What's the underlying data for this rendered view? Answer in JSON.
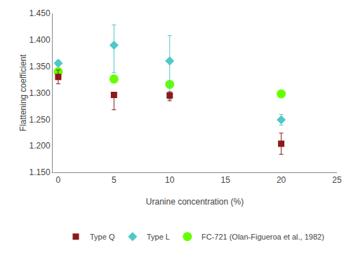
{
  "chart_data": {
    "type": "scatter",
    "title": "",
    "xlabel": "Uranine concentration (%)",
    "ylabel": "Flattening coefficient",
    "x": [
      0,
      5,
      10,
      20
    ],
    "series": [
      {
        "name": "FC-721 (Olan-Figueroa et al., 1982)",
        "color": "#66FF00",
        "marker": "circle",
        "values": [
          1.34,
          1.326,
          1.316,
          1.298
        ],
        "error_lower": [
          0.0,
          0.0,
          0.0,
          0.0
        ],
        "error_upper": [
          0.0,
          0.0,
          0.0,
          0.0
        ]
      },
      {
        "name": "Type L",
        "color": "#50C8C8",
        "marker": "diamond",
        "values": [
          1.356,
          1.39,
          1.36,
          1.249
        ],
        "error_lower": [
          0.005,
          0.052,
          0.072,
          0.01
        ],
        "error_upper": [
          0.005,
          0.038,
          0.048,
          0.01
        ]
      },
      {
        "name": "Type Q",
        "color": "#8B1A1A",
        "marker": "square",
        "values": [
          1.33,
          1.296,
          1.295,
          1.204
        ],
        "error_lower": [
          0.013,
          0.028,
          0.01,
          0.02
        ],
        "error_upper": [
          0.013,
          0.003,
          0.007,
          0.02
        ]
      }
    ],
    "xlim": [
      -0.5,
      25
    ],
    "xticks": [
      0,
      5,
      10,
      15,
      20,
      25
    ],
    "ylim": [
      1.15,
      1.45
    ],
    "yticks": [
      {
        "value": 1.15,
        "label": "1.150"
      },
      {
        "value": 1.2,
        "label": "1.200"
      },
      {
        "value": 1.25,
        "label": "1.250"
      },
      {
        "value": 1.3,
        "label": "1.300"
      },
      {
        "value": 1.35,
        "label": "1.350"
      },
      {
        "value": 1.4,
        "label": "1.400"
      },
      {
        "value": 1.45,
        "label": "1.450"
      }
    ],
    "grid": false,
    "legend": "bottom"
  }
}
